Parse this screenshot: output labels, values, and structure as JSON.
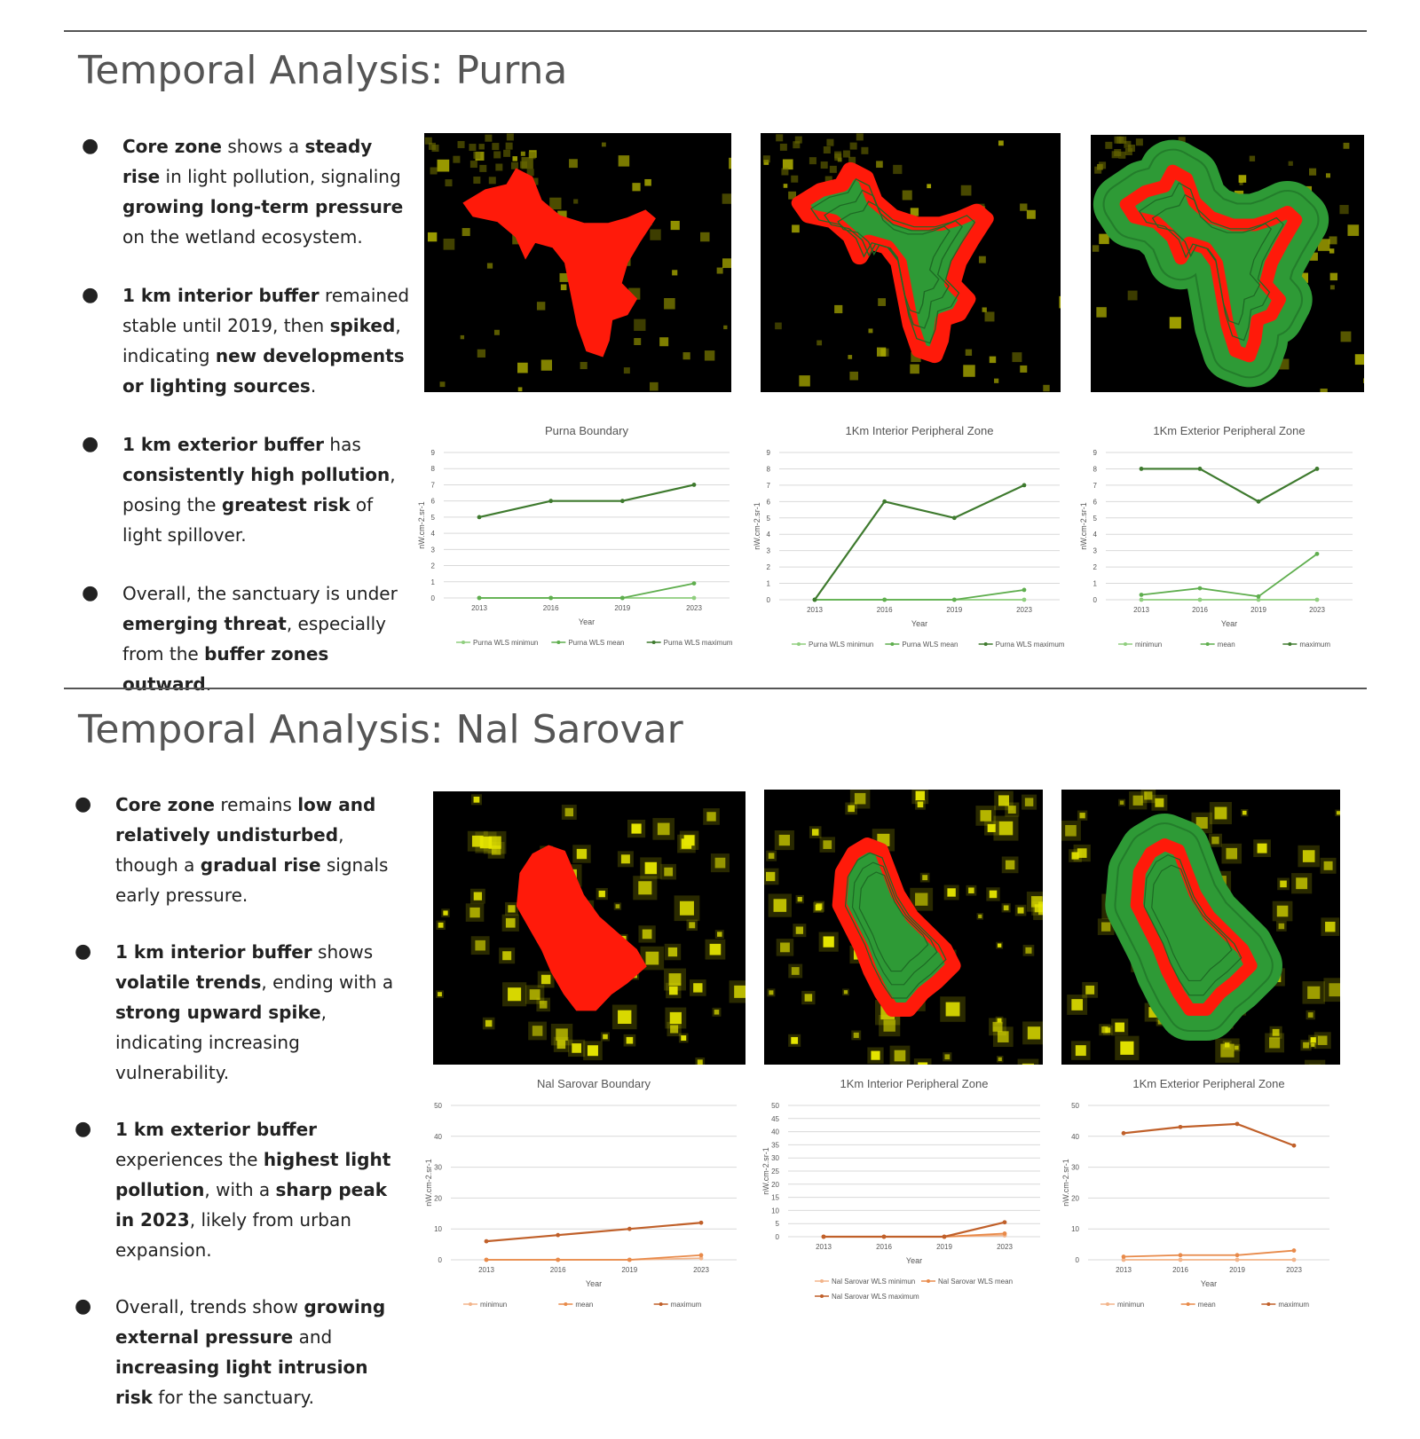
{
  "sections": [
    {
      "title": "Temporal Analysis: Purna",
      "bullets": [
        [
          {
            "t": "Core zone",
            "b": true
          },
          {
            "t": " shows a "
          },
          {
            "t": "steady rise",
            "b": true
          },
          {
            "t": " in light pollution, signaling "
          },
          {
            "t": "growing long-term pressure",
            "b": true
          },
          {
            "t": " on the wetland ecosystem."
          }
        ],
        [
          {
            "t": "1 km interior buffer",
            "b": true
          },
          {
            "t": " remained stable until 2019, then "
          },
          {
            "t": "spiked",
            "b": true
          },
          {
            "t": ", indicating "
          },
          {
            "t": "new developments or lighting sources",
            "b": true
          },
          {
            "t": "."
          }
        ],
        [
          {
            "t": "1 km exterior buffer",
            "b": true
          },
          {
            "t": " has "
          },
          {
            "t": "consistently high pollution",
            "b": true
          },
          {
            "t": ", posing the "
          },
          {
            "t": "greatest risk",
            "b": true
          },
          {
            "t": " of light spillover."
          }
        ],
        [
          {
            "t": "Overall, the sanctuary is under "
          },
          {
            "t": "emerging threat",
            "b": true
          },
          {
            "t": ", especially from the "
          },
          {
            "t": "buffer zones outward",
            "b": true
          },
          {
            "t": "."
          }
        ]
      ],
      "maps": [
        {
          "name": "purna-boundary-map",
          "type": "core"
        },
        {
          "name": "purna-interior-buffer-map",
          "type": "interior"
        },
        {
          "name": "purna-exterior-buffer-map",
          "type": "exterior"
        }
      ]
    },
    {
      "title": "Temporal Analysis: Nal Sarovar",
      "bullets": [
        [
          {
            "t": "Core zone",
            "b": true
          },
          {
            "t": " remains "
          },
          {
            "t": "low and relatively undisturbed",
            "b": true
          },
          {
            "t": ", though a "
          },
          {
            "t": "gradual rise",
            "b": true
          },
          {
            "t": " signals early pressure."
          }
        ],
        [
          {
            "t": "1 km interior buffer",
            "b": true
          },
          {
            "t": " shows "
          },
          {
            "t": "volatile trends",
            "b": true
          },
          {
            "t": ", ending with a "
          },
          {
            "t": "strong upward spike",
            "b": true
          },
          {
            "t": ", indicating increasing vulnerability."
          }
        ],
        [
          {
            "t": "1 km exterior buffer",
            "b": true
          },
          {
            "t": " experiences the "
          },
          {
            "t": "highest light pollution",
            "b": true
          },
          {
            "t": ", with a "
          },
          {
            "t": "sharp peak in 2023",
            "b": true
          },
          {
            "t": ", likely from urban expansion."
          }
        ],
        [
          {
            "t": "Overall, trends show "
          },
          {
            "t": "growing external pressure",
            "b": true
          },
          {
            "t": " and "
          },
          {
            "t": "increasing light intrusion risk",
            "b": true
          },
          {
            "t": " for the sanctuary."
          }
        ]
      ],
      "maps": [
        {
          "name": "nal-sarovar-boundary-map",
          "type": "core"
        },
        {
          "name": "nal-sarovar-interior-buffer-map",
          "type": "interior"
        },
        {
          "name": "nal-sarovar-exterior-buffer-map",
          "type": "exterior"
        }
      ]
    }
  ],
  "colors": {
    "purna_min": "#8fce7e",
    "purna_mean": "#5fae4e",
    "purna_max": "#3e7a2e",
    "nal_min": "#f2b48a",
    "nal_mean": "#e88a4a",
    "nal_max": "#c0602a",
    "zone_red": "#ff1a0a",
    "zone_green": "#2e9a36",
    "glow": "#e6e600"
  },
  "chart_data": [
    {
      "type": "line",
      "title": "Purna Boundary",
      "xlabel": "Year",
      "ylabel": "nW.cm-2.sr-1",
      "categories": [
        "2013",
        "2016",
        "2019",
        "2023"
      ],
      "ylim": [
        0,
        9
      ],
      "yticks": [
        0,
        1,
        2,
        3,
        4,
        5,
        6,
        7,
        8,
        9
      ],
      "series": [
        {
          "name": "Purna WLS minimun",
          "values": [
            0,
            0,
            0,
            0
          ]
        },
        {
          "name": "Purna WLS mean",
          "values": [
            0,
            0,
            0,
            0.9
          ]
        },
        {
          "name": "Purna WLS maximum",
          "values": [
            5,
            6,
            6,
            7
          ]
        }
      ]
    },
    {
      "type": "line",
      "title": "1Km Interior Peripheral Zone",
      "xlabel": "Year",
      "ylabel": "nW.cm-2.sr-1",
      "categories": [
        "2013",
        "2016",
        "2019",
        "2023"
      ],
      "ylim": [
        0,
        9
      ],
      "yticks": [
        0,
        1,
        2,
        3,
        4,
        5,
        6,
        7,
        8,
        9
      ],
      "series": [
        {
          "name": "Purna WLS minimun",
          "values": [
            0,
            0,
            0,
            0
          ]
        },
        {
          "name": "Purna WLS mean",
          "values": [
            0,
            0,
            0,
            0.6
          ]
        },
        {
          "name": "Purna WLS maximum",
          "values": [
            0,
            6,
            5,
            7
          ]
        }
      ]
    },
    {
      "type": "line",
      "title": "1Km Exterior Peripheral Zone",
      "xlabel": "Year",
      "ylabel": "nW.cm-2.sr-1",
      "categories": [
        "2013",
        "2016",
        "2019",
        "2023"
      ],
      "ylim": [
        0,
        9
      ],
      "yticks": [
        0,
        1,
        2,
        3,
        4,
        5,
        6,
        7,
        8,
        9
      ],
      "series": [
        {
          "name": "minimun",
          "values": [
            0,
            0,
            0,
            0
          ]
        },
        {
          "name": "mean",
          "values": [
            0.3,
            0.7,
            0.2,
            2.8
          ]
        },
        {
          "name": "maximum",
          "values": [
            8,
            8,
            6,
            8
          ]
        }
      ]
    },
    {
      "type": "line",
      "title": "Nal Sarovar Boundary",
      "xlabel": "Year",
      "ylabel": "nW.cm-2.sr-1",
      "categories": [
        "2013",
        "2016",
        "2019",
        "2023"
      ],
      "ylim": [
        0,
        50
      ],
      "yticks": [
        0,
        10,
        20,
        30,
        40,
        50
      ],
      "series": [
        {
          "name": "minimun",
          "values": [
            0,
            0,
            0,
            0.5
          ]
        },
        {
          "name": "mean",
          "values": [
            0,
            0,
            0,
            1.5
          ]
        },
        {
          "name": "maximum",
          "values": [
            6,
            8,
            10,
            12
          ]
        }
      ]
    },
    {
      "type": "line",
      "title": "1Km Interior Peripheral Zone",
      "xlabel": "Year",
      "ylabel": "nW.cm-2.sr-1",
      "categories": [
        "2013",
        "2016",
        "2019",
        "2023"
      ],
      "ylim": [
        0,
        50
      ],
      "yticks": [
        0,
        5,
        10,
        15,
        20,
        25,
        30,
        35,
        40,
        45,
        50
      ],
      "series": [
        {
          "name": "Nal Sarovar WLS minimun",
          "values": [
            0,
            0,
            0,
            0.5
          ]
        },
        {
          "name": "Nal Sarovar WLS mean",
          "values": [
            0,
            0,
            0,
            1.2
          ]
        },
        {
          "name": "Nal Sarovar WLS maximum",
          "values": [
            0,
            0,
            0,
            5.5
          ]
        }
      ]
    },
    {
      "type": "line",
      "title": "1Km Exterior Peripheral Zone",
      "xlabel": "Year",
      "ylabel": "nW.cm-2.sr-1",
      "categories": [
        "2013",
        "2016",
        "2019",
        "2023"
      ],
      "ylim": [
        0,
        50
      ],
      "yticks": [
        0,
        10,
        20,
        30,
        40,
        50
      ],
      "series": [
        {
          "name": "minimun",
          "values": [
            0,
            0,
            0,
            0
          ]
        },
        {
          "name": "mean",
          "values": [
            1,
            1.5,
            1.5,
            3
          ]
        },
        {
          "name": "maximum",
          "values": [
            41,
            43,
            44,
            37
          ]
        }
      ]
    }
  ]
}
